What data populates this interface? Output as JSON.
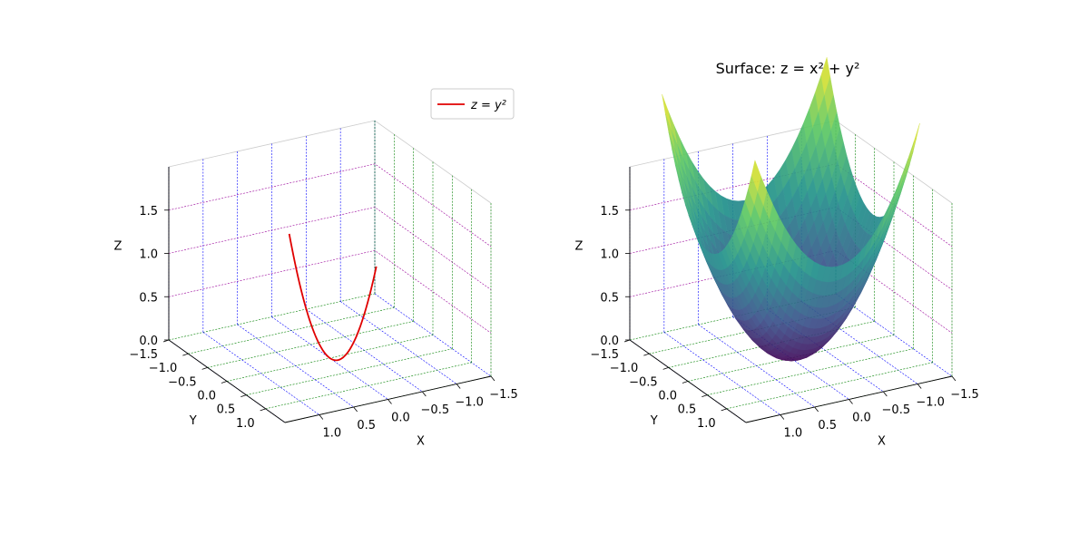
{
  "chart_data": [
    {
      "type": "line3d",
      "title": "",
      "series": [
        {
          "name": "z = y²",
          "legend_label": "z = y²",
          "color": "#e00000",
          "x": [
            0,
            0,
            0,
            0,
            0,
            0,
            0,
            0,
            0,
            0,
            0,
            0,
            0
          ],
          "y": [
            -1.05,
            -0.85,
            -0.65,
            -0.45,
            -0.25,
            -0.05,
            0.15,
            0.35,
            0.55,
            0.75,
            0.95,
            1.05,
            1.2
          ],
          "z": [
            1.1025,
            0.7225,
            0.4225,
            0.2025,
            0.0625,
            0.0025,
            0.0225,
            0.1225,
            0.3025,
            0.5625,
            0.9025,
            1.1025,
            1.44
          ]
        }
      ],
      "xlabel": "X",
      "ylabel": "Y",
      "zlabel": "Z",
      "xlim": [
        -1.5,
        1.5
      ],
      "ylim": [
        -1.5,
        1.5
      ],
      "zlim": [
        0,
        2
      ],
      "xticks": [
        "1.0",
        "0.5",
        "0.0",
        "−0.5",
        "−1.0",
        "−1.5"
      ],
      "yticks": [
        "−1.5",
        "−1.0",
        "−0.5",
        "0.0",
        "0.5",
        "1.0"
      ],
      "zticks": [
        "0.0",
        "0.5",
        "1.0",
        "1.5"
      ],
      "legend": "top-right",
      "grid": true
    },
    {
      "type": "surface3d",
      "title": "Surface: z = x² + y²",
      "function": "z = x^2 + y^2",
      "colormap": [
        "#440154",
        "#3b528b",
        "#21918c",
        "#5ec962",
        "#fde725"
      ],
      "xlabel": "X",
      "ylabel": "Y",
      "zlabel": "Z",
      "xlim": [
        -1.5,
        1.5
      ],
      "ylim": [
        -1.5,
        1.5
      ],
      "zlim": [
        0,
        2
      ],
      "xticks": [
        "1.0",
        "0.5",
        "0.0",
        "−0.5",
        "−1.0",
        "−1.5"
      ],
      "yticks": [
        "−1.5",
        "−1.0",
        "−0.5",
        "0.0",
        "0.5",
        "1.0"
      ],
      "zticks": [
        "0.0",
        "0.5",
        "1.0",
        "1.5"
      ],
      "grid": true
    }
  ]
}
